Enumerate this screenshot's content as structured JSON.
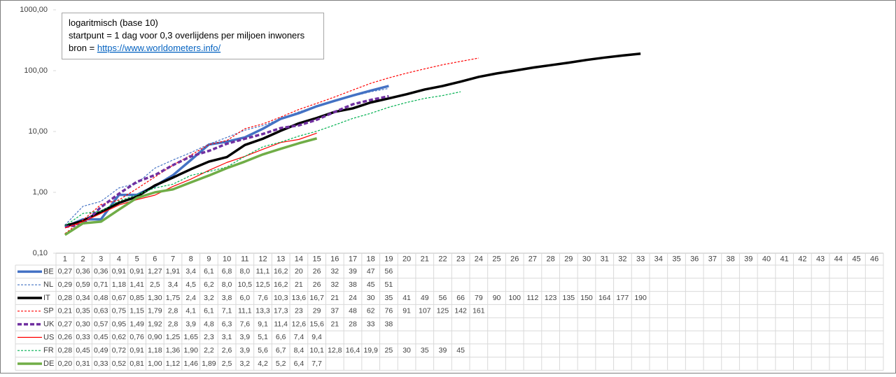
{
  "chart_data": {
    "type": "line",
    "log_y": true,
    "grid": false,
    "ylim": [
      0.1,
      1000
    ],
    "yticks": [
      {
        "value": 0.1,
        "label": "0,10"
      },
      {
        "value": 1,
        "label": "1,00"
      },
      {
        "value": 10,
        "label": "10,00"
      },
      {
        "value": 100,
        "label": "100,00"
      },
      {
        "value": 1000,
        "label": "1000,00"
      }
    ],
    "annotation": {
      "line1": "logaritmisch (base 10)",
      "line2": "startpunt = 1 dag voor 0,3 overlijdens  per miljoen inwoners",
      "line3": "bron = ",
      "link": "https://www.worldometers.info/"
    },
    "categories": [
      1,
      2,
      3,
      4,
      5,
      6,
      7,
      8,
      9,
      10,
      11,
      12,
      13,
      14,
      15,
      16,
      17,
      18,
      19,
      20,
      21,
      22,
      23,
      24,
      25,
      26,
      27,
      28,
      29,
      30,
      31,
      32,
      33,
      34,
      35,
      36,
      37,
      38,
      39,
      40,
      41,
      42,
      43,
      44,
      45,
      46
    ],
    "series": [
      {
        "name": "BE",
        "color": "#4472c4",
        "thick": true,
        "dash": false,
        "values": [
          0.27,
          0.36,
          0.36,
          0.91,
          0.91,
          1.27,
          1.91,
          3.4,
          6.1,
          6.8,
          8.0,
          11.1,
          16.2,
          20,
          26,
          32,
          39,
          47,
          56,
          null,
          null,
          null,
          null,
          null,
          null,
          null,
          null,
          null,
          null,
          null,
          null,
          null,
          null,
          null,
          null,
          null,
          null,
          null,
          null,
          null,
          null,
          null,
          null,
          null,
          null,
          null
        ],
        "value_labels": [
          "0,27",
          "0,36",
          "0,36",
          "0,91",
          "0,91",
          "1,27",
          "1,91",
          "3,4",
          "6,1",
          "6,8",
          "8,0",
          "11,1",
          "16,2",
          "20",
          "26",
          "32",
          "39",
          "47",
          "56",
          null,
          null,
          null,
          null,
          null,
          null,
          null,
          null,
          null,
          null,
          null,
          null,
          null,
          null,
          null,
          null,
          null,
          null,
          null,
          null,
          null,
          null,
          null,
          null,
          null,
          null,
          null
        ]
      },
      {
        "name": "NL",
        "color": "#4472c4",
        "thick": false,
        "dash": true,
        "values": [
          0.29,
          0.59,
          0.71,
          1.18,
          1.41,
          2.5,
          3.4,
          4.5,
          6.2,
          8.0,
          10.5,
          12.5,
          16.2,
          21,
          26,
          32,
          38,
          45,
          51,
          null,
          null,
          null,
          null,
          null,
          null,
          null,
          null,
          null,
          null,
          null,
          null,
          null,
          null,
          null,
          null,
          null,
          null,
          null,
          null,
          null,
          null,
          null,
          null,
          null,
          null,
          null
        ],
        "value_labels": [
          "0,29",
          "0,59",
          "0,71",
          "1,18",
          "1,41",
          "2,5",
          "3,4",
          "4,5",
          "6,2",
          "8,0",
          "10,5",
          "12,5",
          "16,2",
          "21",
          "26",
          "32",
          "38",
          "45",
          "51",
          null,
          null,
          null,
          null,
          null,
          null,
          null,
          null,
          null,
          null,
          null,
          null,
          null,
          null,
          null,
          null,
          null,
          null,
          null,
          null,
          null,
          null,
          null,
          null,
          null,
          null,
          null
        ]
      },
      {
        "name": "IT",
        "color": "#000000",
        "thick": true,
        "dash": false,
        "values": [
          0.28,
          0.34,
          0.48,
          0.67,
          0.85,
          1.3,
          1.75,
          2.4,
          3.2,
          3.8,
          6.0,
          7.6,
          10.3,
          13.6,
          16.7,
          21,
          24,
          30,
          35,
          41,
          49,
          56,
          66,
          79,
          90,
          100,
          112,
          123,
          135,
          150,
          164,
          177,
          190,
          null,
          null,
          null,
          null,
          null,
          null,
          null,
          null,
          null,
          null,
          null,
          null,
          null
        ],
        "value_labels": [
          "0,28",
          "0,34",
          "0,48",
          "0,67",
          "0,85",
          "1,30",
          "1,75",
          "2,4",
          "3,2",
          "3,8",
          "6,0",
          "7,6",
          "10,3",
          "13,6",
          "16,7",
          "21",
          "24",
          "30",
          "35",
          "41",
          "49",
          "56",
          "66",
          "79",
          "90",
          "100",
          "112",
          "123",
          "135",
          "150",
          "164",
          "177",
          "190",
          null,
          null,
          null,
          null,
          null,
          null,
          null,
          null,
          null,
          null,
          null,
          null,
          null
        ]
      },
      {
        "name": "SP",
        "color": "#ff0000",
        "thick": false,
        "dash": true,
        "values": [
          0.21,
          0.35,
          0.63,
          0.75,
          1.15,
          1.79,
          2.8,
          4.1,
          6.1,
          7.1,
          11.1,
          13.3,
          17.3,
          23,
          29,
          37,
          48,
          62,
          76,
          91,
          107,
          125,
          142,
          161,
          null,
          null,
          null,
          null,
          null,
          null,
          null,
          null,
          null,
          null,
          null,
          null,
          null,
          null,
          null,
          null,
          null,
          null,
          null,
          null,
          null,
          null
        ],
        "value_labels": [
          "0,21",
          "0,35",
          "0,63",
          "0,75",
          "1,15",
          "1,79",
          "2,8",
          "4,1",
          "6,1",
          "7,1",
          "11,1",
          "13,3",
          "17,3",
          "23",
          "29",
          "37",
          "48",
          "62",
          "76",
          "91",
          "107",
          "125",
          "142",
          "161",
          null,
          null,
          null,
          null,
          null,
          null,
          null,
          null,
          null,
          null,
          null,
          null,
          null,
          null,
          null,
          null,
          null,
          null,
          null,
          null,
          null,
          null
        ]
      },
      {
        "name": "UK",
        "color": "#7030a0",
        "thick": true,
        "dash": true,
        "values": [
          0.27,
          0.3,
          0.57,
          0.95,
          1.49,
          1.92,
          2.8,
          3.9,
          4.8,
          6.3,
          7.6,
          9.1,
          11.4,
          12.6,
          15.6,
          21,
          28,
          33,
          38,
          null,
          null,
          null,
          null,
          null,
          null,
          null,
          null,
          null,
          null,
          null,
          null,
          null,
          null,
          null,
          null,
          null,
          null,
          null,
          null,
          null,
          null,
          null,
          null,
          null,
          null,
          null
        ],
        "value_labels": [
          "0,27",
          "0,30",
          "0,57",
          "0,95",
          "1,49",
          "1,92",
          "2,8",
          "3,9",
          "4,8",
          "6,3",
          "7,6",
          "9,1",
          "11,4",
          "12,6",
          "15,6",
          "21",
          "28",
          "33",
          "38",
          null,
          null,
          null,
          null,
          null,
          null,
          null,
          null,
          null,
          null,
          null,
          null,
          null,
          null,
          null,
          null,
          null,
          null,
          null,
          null,
          null,
          null,
          null,
          null,
          null,
          null,
          null
        ]
      },
      {
        "name": "US",
        "color": "#ff0000",
        "thick": false,
        "dash": false,
        "values": [
          0.26,
          0.33,
          0.45,
          0.62,
          0.76,
          0.9,
          1.25,
          1.65,
          2.3,
          3.1,
          3.9,
          5.1,
          6.6,
          7.4,
          9.4,
          null,
          null,
          null,
          null,
          null,
          null,
          null,
          null,
          null,
          null,
          null,
          null,
          null,
          null,
          null,
          null,
          null,
          null,
          null,
          null,
          null,
          null,
          null,
          null,
          null,
          null,
          null,
          null,
          null,
          null,
          null
        ],
        "value_labels": [
          "0,26",
          "0,33",
          "0,45",
          "0,62",
          "0,76",
          "0,90",
          "1,25",
          "1,65",
          "2,3",
          "3,1",
          "3,9",
          "5,1",
          "6,6",
          "7,4",
          "9,4",
          null,
          null,
          null,
          null,
          null,
          null,
          null,
          null,
          null,
          null,
          null,
          null,
          null,
          null,
          null,
          null,
          null,
          null,
          null,
          null,
          null,
          null,
          null,
          null,
          null,
          null,
          null,
          null,
          null,
          null,
          null
        ]
      },
      {
        "name": "FR",
        "color": "#00b050",
        "thick": false,
        "dash": true,
        "values": [
          0.28,
          0.45,
          0.49,
          0.72,
          0.91,
          1.18,
          1.36,
          1.9,
          2.2,
          2.6,
          3.9,
          5.6,
          6.7,
          8.4,
          10.1,
          12.8,
          16.4,
          19.9,
          25,
          30,
          35,
          39,
          45,
          null,
          null,
          null,
          null,
          null,
          null,
          null,
          null,
          null,
          null,
          null,
          null,
          null,
          null,
          null,
          null,
          null,
          null,
          null,
          null,
          null,
          null,
          null
        ],
        "value_labels": [
          "0,28",
          "0,45",
          "0,49",
          "0,72",
          "0,91",
          "1,18",
          "1,36",
          "1,90",
          "2,2",
          "2,6",
          "3,9",
          "5,6",
          "6,7",
          "8,4",
          "10,1",
          "12,8",
          "16,4",
          "19,9",
          "25",
          "30",
          "35",
          "39",
          "45",
          null,
          null,
          null,
          null,
          null,
          null,
          null,
          null,
          null,
          null,
          null,
          null,
          null,
          null,
          null,
          null,
          null,
          null,
          null,
          null,
          null,
          null,
          null
        ]
      },
      {
        "name": "DE",
        "color": "#70ad47",
        "thick": true,
        "dash": false,
        "values": [
          0.2,
          0.31,
          0.33,
          0.52,
          0.81,
          1.0,
          1.12,
          1.46,
          1.89,
          2.5,
          3.2,
          4.2,
          5.2,
          6.4,
          7.7,
          null,
          null,
          null,
          null,
          null,
          null,
          null,
          null,
          null,
          null,
          null,
          null,
          null,
          null,
          null,
          null,
          null,
          null,
          null,
          null,
          null,
          null,
          null,
          null,
          null,
          null,
          null,
          null,
          null,
          null,
          null
        ],
        "value_labels": [
          "0,20",
          "0,31",
          "0,33",
          "0,52",
          "0,81",
          "1,00",
          "1,12",
          "1,46",
          "1,89",
          "2,5",
          "3,2",
          "4,2",
          "5,2",
          "6,4",
          "7,7",
          null,
          null,
          null,
          null,
          null,
          null,
          null,
          null,
          null,
          null,
          null,
          null,
          null,
          null,
          null,
          null,
          null,
          null,
          null,
          null,
          null,
          null,
          null,
          null,
          null,
          null,
          null,
          null,
          null,
          null,
          null
        ]
      }
    ]
  }
}
